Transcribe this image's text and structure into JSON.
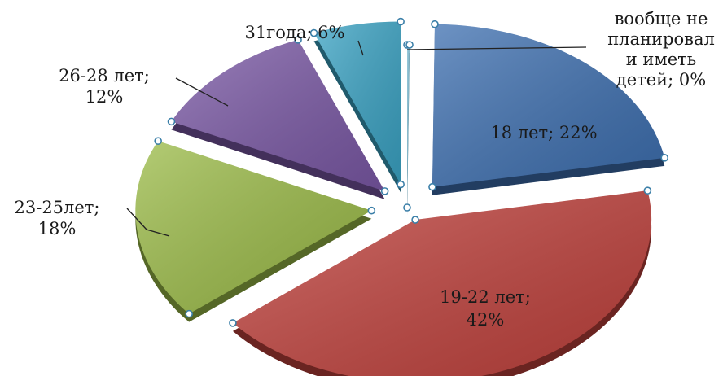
{
  "chart_data": {
    "type": "pie",
    "exploded": true,
    "three_d": true,
    "legend": "none",
    "slices": [
      {
        "category": "вообще не планировал и иметь детей",
        "value": 0,
        "color": "#7fbfd6",
        "label_lines": [
          "вообще не",
          "планировал",
          "и иметь",
          "детей;  0%"
        ]
      },
      {
        "category": "18 лет",
        "value": 22,
        "color": "#3d6fb0",
        "label_lines": [
          "18 лет;  22%"
        ]
      },
      {
        "category": "19-22 лет",
        "value": 42,
        "color": "#c0413c",
        "label_lines": [
          "19-22 лет;",
          "42%"
        ]
      },
      {
        "category": "23-25лет",
        "value": 18,
        "color": "#9bbb47",
        "label_lines": [
          "23-25лет;",
          "18%"
        ]
      },
      {
        "category": "26-28 лет",
        "value": 12,
        "color": "#7a58a5",
        "label_lines": [
          "26-28 лет;",
          "12%"
        ]
      },
      {
        "category": "31года",
        "value": 6,
        "color": "#3aa3c4",
        "label_lines": [
          "31года; 6%"
        ]
      }
    ]
  }
}
